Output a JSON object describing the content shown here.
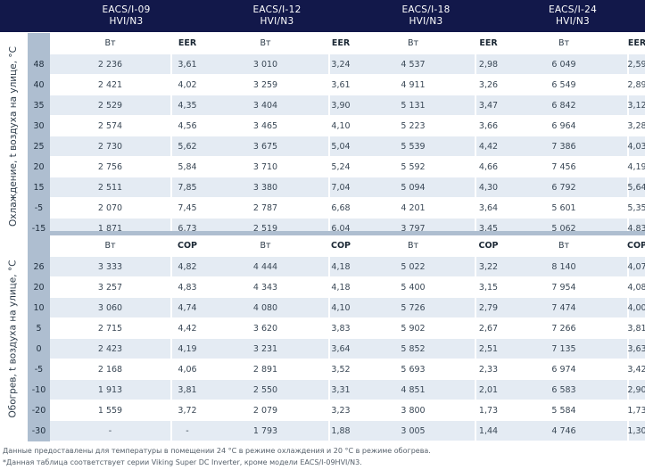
{
  "models": [
    {
      "line1": "EACS/I-09",
      "line2": "HVI/N3"
    },
    {
      "line1": "EACS/I-12",
      "line2": "HVI/N3"
    },
    {
      "line1": "EACS/I-18",
      "line2": "HVI/N3"
    },
    {
      "line1": "EACS/I-24",
      "line2": "HVI/N3"
    }
  ],
  "cooling": {
    "side_label": "Охлаждение, t воздуха на улице, °C",
    "unit_label": "Вт",
    "ratio_label": "EER",
    "rows": [
      {
        "t": "48",
        "values": [
          [
            "2 236",
            "3,61"
          ],
          [
            "3 010",
            "3,24"
          ],
          [
            "4 537",
            "2,98"
          ],
          [
            "6 049",
            "2,59"
          ]
        ]
      },
      {
        "t": "40",
        "values": [
          [
            "2 421",
            "4,02"
          ],
          [
            "3 259",
            "3,61"
          ],
          [
            "4 911",
            "3,26"
          ],
          [
            "6 549",
            "2,89"
          ]
        ]
      },
      {
        "t": "35",
        "values": [
          [
            "2 529",
            "4,35"
          ],
          [
            "3 404",
            "3,90"
          ],
          [
            "5 131",
            "3,47"
          ],
          [
            "6 842",
            "3,12"
          ]
        ]
      },
      {
        "t": "30",
        "values": [
          [
            "2 574",
            "4,56"
          ],
          [
            "3 465",
            "4,10"
          ],
          [
            "5 223",
            "3,66"
          ],
          [
            "6 964",
            "3,28"
          ]
        ]
      },
      {
        "t": "25",
        "values": [
          [
            "2 730",
            "5,62"
          ],
          [
            "3 675",
            "5,04"
          ],
          [
            "5 539",
            "4,42"
          ],
          [
            "7 386",
            "4,03"
          ]
        ]
      },
      {
        "t": "20",
        "values": [
          [
            "2 756",
            "5,84"
          ],
          [
            "3 710",
            "5,24"
          ],
          [
            "5 592",
            "4,66"
          ],
          [
            "7 456",
            "4,19"
          ]
        ]
      },
      {
        "t": "15",
        "values": [
          [
            "2 511",
            "7,85"
          ],
          [
            "3 380",
            "7,04"
          ],
          [
            "5 094",
            "4,30"
          ],
          [
            "6 792",
            "5,64"
          ]
        ]
      },
      {
        "t": "-5",
        "values": [
          [
            "2 070",
            "7,45"
          ],
          [
            "2 787",
            "6,68"
          ],
          [
            "4 201",
            "3,64"
          ],
          [
            "5 601",
            "5,35"
          ]
        ]
      },
      {
        "t": "-15",
        "values": [
          [
            "1 871",
            "6,73"
          ],
          [
            "2 519",
            "6,04"
          ],
          [
            "3 797",
            "3,45"
          ],
          [
            "5 062",
            "4,83"
          ]
        ]
      }
    ]
  },
  "heating": {
    "side_label": "Обогрев, t воздуха на улице, °C",
    "unit_label": "Вт",
    "ratio_label": "COP",
    "rows": [
      {
        "t": "26",
        "values": [
          [
            "3 333",
            "4,82"
          ],
          [
            "4 444",
            "4,18"
          ],
          [
            "5 022",
            "3,22"
          ],
          [
            "8 140",
            "4,07"
          ]
        ]
      },
      {
        "t": "20",
        "values": [
          [
            "3 257",
            "4,83"
          ],
          [
            "4 343",
            "4,18"
          ],
          [
            "5 400",
            "3,15"
          ],
          [
            "7 954",
            "4,08"
          ]
        ]
      },
      {
        "t": "10",
        "values": [
          [
            "3 060",
            "4,74"
          ],
          [
            "4 080",
            "4,10"
          ],
          [
            "5 726",
            "2,79"
          ],
          [
            "7 474",
            "4,00"
          ]
        ]
      },
      {
        "t": "5",
        "values": [
          [
            "2 715",
            "4,42"
          ],
          [
            "3 620",
            "3,83"
          ],
          [
            "5 902",
            "2,67"
          ],
          [
            "7 266",
            "3,81"
          ]
        ]
      },
      {
        "t": "0",
        "values": [
          [
            "2 423",
            "4,19"
          ],
          [
            "3 231",
            "3,64"
          ],
          [
            "5 852",
            "2,51"
          ],
          [
            "7 135",
            "3,63"
          ]
        ]
      },
      {
        "t": "-5",
        "values": [
          [
            "2 168",
            "4,06"
          ],
          [
            "2 891",
            "3,52"
          ],
          [
            "5 693",
            "2,33"
          ],
          [
            "6 974",
            "3,42"
          ]
        ]
      },
      {
        "t": "-10",
        "values": [
          [
            "1 913",
            "3,81"
          ],
          [
            "2 550",
            "3,31"
          ],
          [
            "4 851",
            "2,01"
          ],
          [
            "6 583",
            "2,90"
          ]
        ]
      },
      {
        "t": "-20",
        "values": [
          [
            "1 559",
            "3,72"
          ],
          [
            "2 079",
            "3,23"
          ],
          [
            "3 800",
            "1,73"
          ],
          [
            "5 584",
            "1,73"
          ]
        ]
      },
      {
        "t": "-30",
        "values": [
          [
            "-",
            "-"
          ],
          [
            "1 793",
            "1,88"
          ],
          [
            "3 005",
            "1,44"
          ],
          [
            "4 746",
            "1,30"
          ]
        ]
      }
    ]
  },
  "footnotes": [
    "Данные предоставлены для температуры в помещении 24 °С в режиме охлаждения и 20 °С в режиме обогрева.",
    "*Данная таблица соответствует серии Viking Super DC Inverter, кроме модели EACS/I-09HVI/N3."
  ],
  "colors": {
    "header_bg": "#12184a",
    "temp_col_bg": "#aebed0",
    "stripe_bg": "#e4ebf3"
  }
}
